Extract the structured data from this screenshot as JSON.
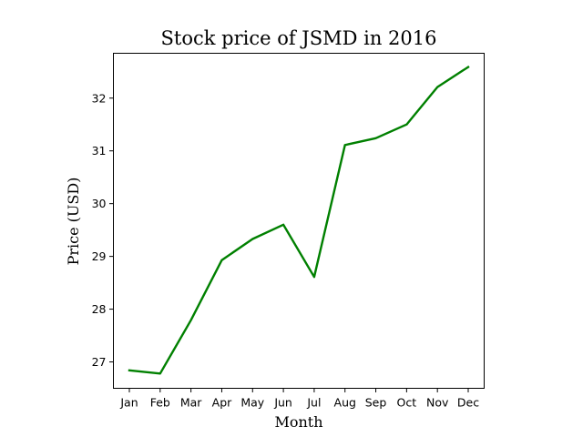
{
  "chart_data": {
    "type": "line",
    "title": "Stock price of JSMD in 2016",
    "xlabel": "Month",
    "ylabel": "Price (USD)",
    "categories": [
      "Jan",
      "Feb",
      "Mar",
      "Apr",
      "May",
      "Jun",
      "Jul",
      "Aug",
      "Sep",
      "Oct",
      "Nov",
      "Dec"
    ],
    "series": [
      {
        "name": "JSMD",
        "color": "#008000",
        "values": [
          26.84,
          26.78,
          27.79,
          28.93,
          29.33,
          29.6,
          28.61,
          31.11,
          31.24,
          31.5,
          32.21,
          32.59
        ]
      }
    ],
    "ylim": [
      26.5,
      32.85
    ],
    "yticks": [
      27,
      28,
      29,
      30,
      31,
      32
    ],
    "grid": false,
    "legend": "none"
  }
}
